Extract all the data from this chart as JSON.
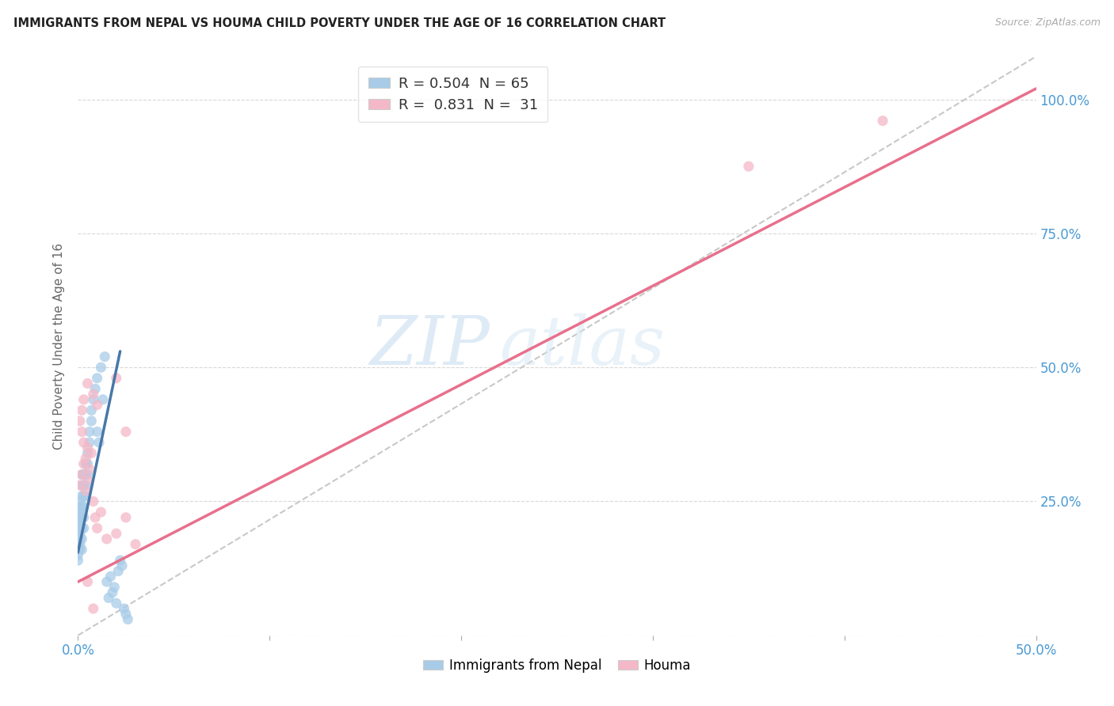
{
  "title": "IMMIGRANTS FROM NEPAL VS HOUMA CHILD POVERTY UNDER THE AGE OF 16 CORRELATION CHART",
  "source": "Source: ZipAtlas.com",
  "ylabel": "Child Poverty Under the Age of 16",
  "xlim": [
    0.0,
    0.5
  ],
  "ylim": [
    0.0,
    1.08
  ],
  "xticks": [
    0.0,
    0.1,
    0.2,
    0.3,
    0.4,
    0.5
  ],
  "xticklabels": [
    "0.0%",
    "",
    "",
    "",
    "",
    "50.0%"
  ],
  "yticks": [
    0.0,
    0.25,
    0.5,
    0.75,
    1.0
  ],
  "yticklabels_right": [
    "",
    "25.0%",
    "50.0%",
    "75.0%",
    "100.0%"
  ],
  "watermark_zip": "ZIP",
  "watermark_atlas": "atlas",
  "legend_label1": "R = 0.504  N = 65",
  "legend_label2": "R =  0.831  N =  31",
  "color_blue": "#a8cce8",
  "color_pink": "#f4b8c8",
  "color_blue_line": "#4878a8",
  "color_pink_line": "#e8708c",
  "color_dashed": "#c8c8c8",
  "background_color": "#ffffff",
  "grid_color": "#d8d8d8",
  "nepal_x": [
    0.0,
    0.0,
    0.0,
    0.0,
    0.0,
    0.0,
    0.0,
    0.0,
    0.0,
    0.0,
    0.001,
    0.001,
    0.001,
    0.001,
    0.001,
    0.001,
    0.001,
    0.001,
    0.001,
    0.001,
    0.002,
    0.002,
    0.002,
    0.002,
    0.002,
    0.002,
    0.002,
    0.002,
    0.003,
    0.003,
    0.003,
    0.003,
    0.003,
    0.003,
    0.004,
    0.004,
    0.004,
    0.004,
    0.005,
    0.005,
    0.005,
    0.006,
    0.006,
    0.007,
    0.007,
    0.008,
    0.009,
    0.01,
    0.012,
    0.014,
    0.015,
    0.018,
    0.02,
    0.021,
    0.022,
    0.024,
    0.01,
    0.011,
    0.013,
    0.016,
    0.019,
    0.017,
    0.023,
    0.025,
    0.026
  ],
  "nepal_y": [
    0.2,
    0.18,
    0.22,
    0.16,
    0.14,
    0.19,
    0.21,
    0.17,
    0.23,
    0.15,
    0.24,
    0.22,
    0.2,
    0.18,
    0.16,
    0.25,
    0.21,
    0.19,
    0.17,
    0.23,
    0.26,
    0.24,
    0.22,
    0.2,
    0.18,
    0.28,
    0.3,
    0.16,
    0.28,
    0.26,
    0.24,
    0.22,
    0.3,
    0.2,
    0.32,
    0.3,
    0.28,
    0.26,
    0.34,
    0.32,
    0.3,
    0.36,
    0.38,
    0.4,
    0.42,
    0.44,
    0.46,
    0.48,
    0.5,
    0.52,
    0.1,
    0.08,
    0.06,
    0.12,
    0.14,
    0.05,
    0.38,
    0.36,
    0.44,
    0.07,
    0.09,
    0.11,
    0.13,
    0.04,
    0.03
  ],
  "houma_x": [
    0.001,
    0.002,
    0.003,
    0.004,
    0.005,
    0.001,
    0.002,
    0.003,
    0.004,
    0.005,
    0.006,
    0.007,
    0.008,
    0.009,
    0.01,
    0.002,
    0.003,
    0.005,
    0.008,
    0.01,
    0.012,
    0.015,
    0.02,
    0.025,
    0.03,
    0.02,
    0.025,
    0.35,
    0.42,
    0.005,
    0.008
  ],
  "houma_y": [
    0.28,
    0.3,
    0.32,
    0.27,
    0.35,
    0.4,
    0.38,
    0.36,
    0.33,
    0.29,
    0.31,
    0.34,
    0.25,
    0.22,
    0.2,
    0.42,
    0.44,
    0.47,
    0.45,
    0.43,
    0.23,
    0.18,
    0.19,
    0.22,
    0.17,
    0.48,
    0.38,
    0.875,
    0.96,
    0.1,
    0.05
  ],
  "nepal_line_x": [
    0.0,
    0.022
  ],
  "nepal_line_y": [
    0.155,
    0.53
  ],
  "houma_line_x": [
    0.0,
    0.5
  ],
  "houma_line_y": [
    0.1,
    1.02
  ],
  "diag_line_x": [
    0.0,
    0.5
  ],
  "diag_line_y": [
    0.0,
    1.08
  ]
}
